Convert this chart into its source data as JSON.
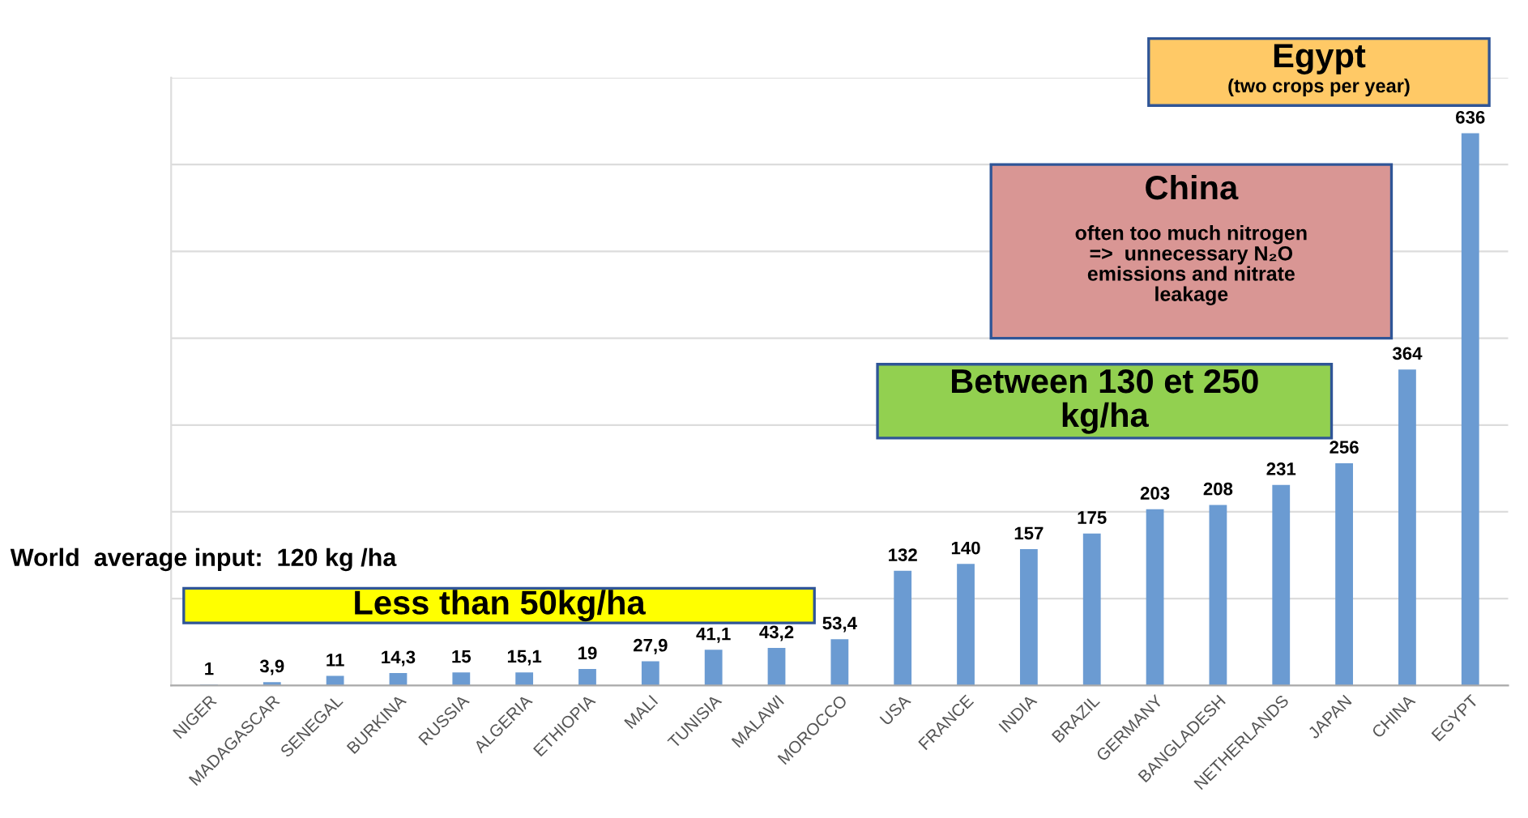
{
  "chart_data": {
    "type": "bar",
    "categories": [
      "NIGER",
      "MADAGASCAR",
      "SENEGAL",
      "BURKINA",
      "RUSSIA",
      "ALGERIA",
      "ETHIOPIA",
      "MALI",
      "TUNISIA",
      "MALAWI",
      "MOROCCO",
      "USA",
      "FRANCE",
      "INDIA",
      "BRAZIL",
      "GERMANY",
      "BANGLADESH",
      "NETHERLANDS",
      "JAPAN",
      "CHINA",
      "EGYPT"
    ],
    "values": [
      1,
      3.9,
      11,
      14.3,
      15,
      15.1,
      19,
      27.9,
      41.1,
      43.2,
      53.4,
      132,
      140,
      157,
      175,
      203,
      208,
      231,
      256,
      364,
      636
    ],
    "value_labels": [
      "1",
      "3,9",
      "11",
      "14,3",
      "15",
      "15,1",
      "19",
      "27,9",
      "41,1",
      "43,2",
      "53,4",
      "132",
      "140",
      "157",
      "175",
      "203",
      "208",
      "231",
      "256",
      "364",
      "636"
    ],
    "color": "#6b9bd2",
    "ylim": [
      0,
      700
    ],
    "yticks": [
      {
        "value": 0,
        "label": null
      },
      {
        "value": 100,
        "label": null
      },
      {
        "value": 200,
        "label": null
      },
      {
        "value": 300,
        "label": null
      },
      {
        "value": 400,
        "label": null
      },
      {
        "value": 500,
        "label": null
      },
      {
        "value": 600,
        "label": null
      },
      {
        "value": 700,
        "label": null
      }
    ],
    "grid": "y",
    "annotations": [
      "Egypt",
      "(two crops per year)",
      "China",
      "often too much nitrogen\n=>  unnecessary N₂O\nemissions and nitrate\nleakage",
      "Between 130 et 250\nkg/ha",
      "Less than 50kg/ha",
      "World  average input:  120 kg /ha"
    ]
  }
}
